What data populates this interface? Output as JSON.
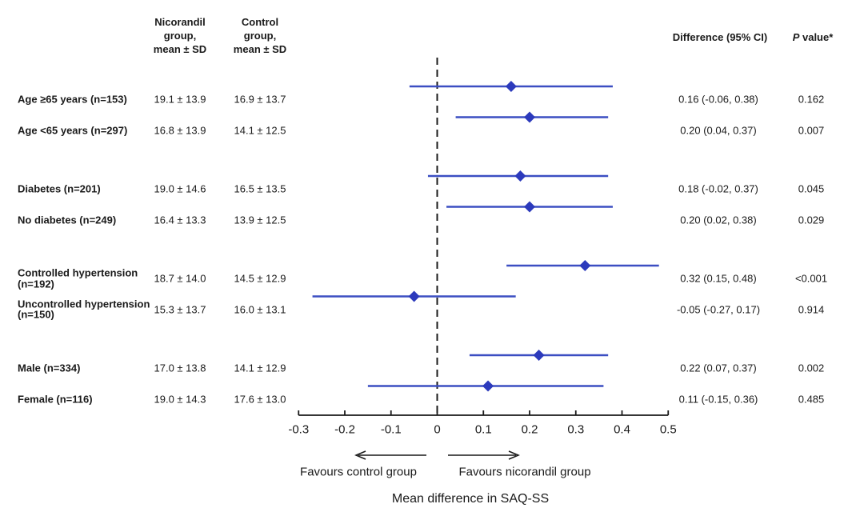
{
  "colors": {
    "background": "#ffffff",
    "text": "#1a1a1a",
    "axis": "#1a1a1a",
    "ci_line_blue": "#3c4ec2",
    "diamond_blue": "#2c3abc"
  },
  "headers": {
    "nicorandil": "Nicorandil\ngroup,\nmean ± SD",
    "control": "Control\ngroup,\nmean ± SD",
    "difference": "Difference (95% CI)",
    "p_italic": "P",
    "p_rest": " value*"
  },
  "chart_data": {
    "type": "forest",
    "xlabel": "Mean difference in SAQ-SS",
    "favours_left": "Favours control group",
    "favours_right": "Favours nicorandil group",
    "x_axis": {
      "min": -0.3,
      "max": 0.5,
      "zero_line": 0,
      "ticks": [
        -0.3,
        -0.2,
        -0.1,
        0,
        0.1,
        0.2,
        0.3,
        0.4,
        0.5
      ],
      "tick_labels": [
        "-0.3",
        "-0.2",
        "-0.1",
        "0",
        "0.1",
        "0.2",
        "0.3",
        "0.4",
        "0.5"
      ]
    },
    "rows": [
      {
        "group": 0,
        "label": "Age ≥65 years (n=153)",
        "nicorandil": "19.1 ± 13.9",
        "control": "16.9 ± 13.7",
        "diff": 0.16,
        "ci_low": -0.06,
        "ci_high": 0.38,
        "diff_text": "0.16 (-0.06, 0.38)",
        "p": "0.162"
      },
      {
        "group": 0,
        "label": "Age <65 years (n=297)",
        "nicorandil": "16.8 ± 13.9",
        "control": "14.1 ± 12.5",
        "diff": 0.2,
        "ci_low": 0.04,
        "ci_high": 0.37,
        "diff_text": "0.20 (0.04, 0.37)",
        "p": "0.007"
      },
      {
        "group": 1,
        "label": "Diabetes (n=201)",
        "nicorandil": "19.0 ± 14.6",
        "control": "16.5 ± 13.5",
        "diff": 0.18,
        "ci_low": -0.02,
        "ci_high": 0.37,
        "diff_text": "0.18 (-0.02, 0.37)",
        "p": "0.045"
      },
      {
        "group": 1,
        "label": "No diabetes (n=249)",
        "nicorandil": "16.4 ± 13.3",
        "control": "13.9 ± 12.5",
        "diff": 0.2,
        "ci_low": 0.02,
        "ci_high": 0.38,
        "diff_text": "0.20 (0.02, 0.38)",
        "p": "0.029"
      },
      {
        "group": 2,
        "label": "Controlled hypertension (n=192)",
        "nicorandil": "18.7 ± 14.0",
        "control": "14.5 ± 12.9",
        "diff": 0.32,
        "ci_low": 0.15,
        "ci_high": 0.48,
        "diff_text": "0.32 (0.15, 0.48)",
        "p": "<0.001"
      },
      {
        "group": 2,
        "label": "Uncontrolled hypertension (n=150)",
        "nicorandil": "15.3 ± 13.7",
        "control": "16.0 ± 13.1",
        "diff": -0.05,
        "ci_low": -0.27,
        "ci_high": 0.17,
        "diff_text": "-0.05 (-0.27, 0.17)",
        "p": "0.914"
      },
      {
        "group": 3,
        "label": "Male (n=334)",
        "nicorandil": "17.0 ± 13.8",
        "control": "14.1 ± 12.9",
        "diff": 0.22,
        "ci_low": 0.07,
        "ci_high": 0.37,
        "diff_text": "0.22 (0.07, 0.37)",
        "p": "0.002"
      },
      {
        "group": 3,
        "label": "Female (n=116)",
        "nicorandil": "19.0 ± 14.3",
        "control": "17.6 ± 13.0",
        "diff": 0.11,
        "ci_low": -0.15,
        "ci_high": 0.36,
        "diff_text": "0.11 (-0.15, 0.36)",
        "p": "0.485"
      }
    ]
  }
}
